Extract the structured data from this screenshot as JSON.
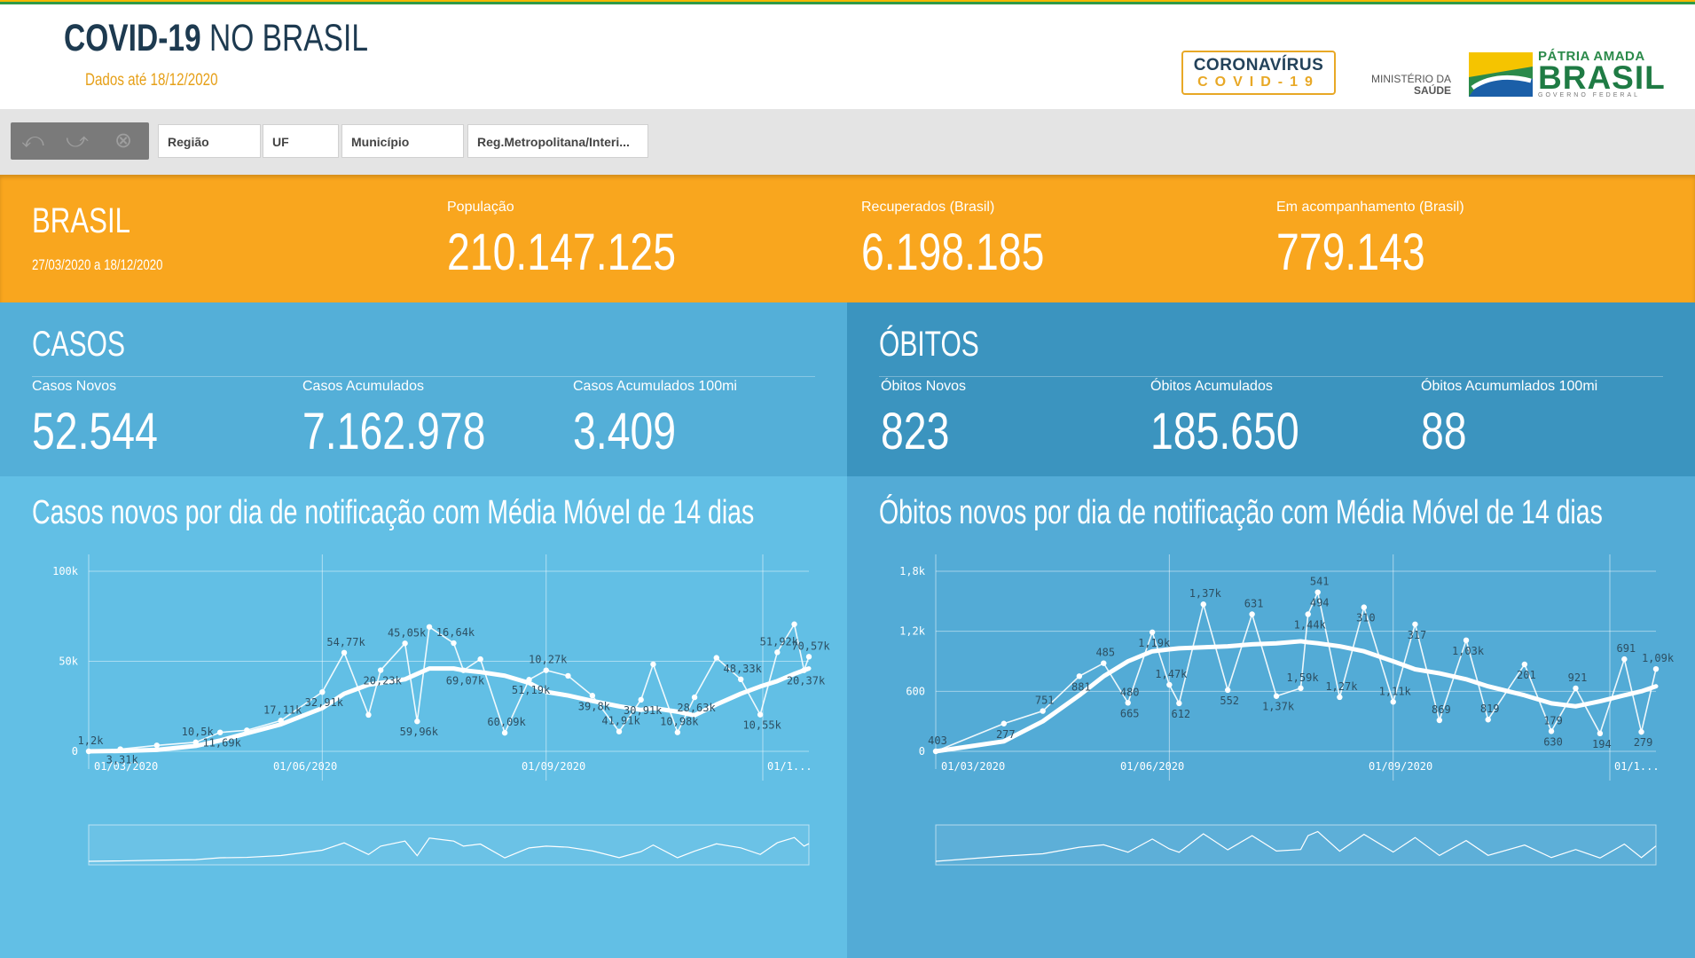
{
  "header": {
    "title_bold": "COVID-19",
    "title_light": "NO BRASIL",
    "data_date": "Dados até 18/12/2020",
    "logo_covid_line1": "CORONAVÍRUS",
    "logo_covid_line2": "COVID-19",
    "logo_ministerio_line1": "MINISTÉRIO DA",
    "logo_ministerio_line2": "SAÚDE",
    "logo_brasil_top": "PÁTRIA AMADA",
    "logo_brasil_main": "BRASIL",
    "logo_brasil_sub": "GOVERNO FEDERAL"
  },
  "filters": {
    "tool_icons": [
      "step-back-icon",
      "step-forward-icon",
      "clear-selections-icon"
    ],
    "items": [
      "Região",
      "UF",
      "Município",
      "Reg.Metropolitana/Interi..."
    ]
  },
  "summary": {
    "title": "BRASIL",
    "range": "27/03/2020 a 18/12/2020",
    "stats": [
      {
        "label": "População",
        "value": "210.147.125"
      },
      {
        "label": "Recuperados (Brasil)",
        "value": "6.198.185"
      },
      {
        "label": "Em acompanhamento (Brasil)",
        "value": "779.143"
      }
    ]
  },
  "casos": {
    "title": "CASOS",
    "kpis": [
      {
        "label": "Casos Novos",
        "value": "52.544"
      },
      {
        "label": "Casos Acumulados",
        "value": "7.162.978"
      },
      {
        "label": "Casos Acumulados 100mi",
        "value": "3.409"
      }
    ],
    "chart_title": "Casos novos por dia de notificação com Média Móvel de 14 dias"
  },
  "obitos": {
    "title": "ÓBITOS",
    "kpis": [
      {
        "label": "Óbitos Novos",
        "value": "823"
      },
      {
        "label": "Óbitos Acumulados",
        "value": "185.650"
      },
      {
        "label": "Óbitos Acumumlados 100mi",
        "value": "88"
      }
    ],
    "chart_title": "Óbitos novos por dia de notificação com Média Móvel de 14 dias"
  },
  "colors": {
    "orange": "#f9a61e",
    "blue_kpi_left": "#54afd8",
    "blue_kpi_right": "#3b94bf",
    "blue_chart_left": "#62bfe5",
    "blue_chart_right": "#53abd6",
    "title_dark": "#1d3a50",
    "date_orange": "#e6a019"
  },
  "chart_data": [
    {
      "type": "line",
      "ylim": [
        0,
        100000
      ],
      "yticks": [
        "0",
        "50k",
        "100k"
      ],
      "xticks": [
        "01/03/2020",
        "01/06/2020",
        "01/09/2020",
        "01/1..."
      ],
      "x": [
        "2020-02-26",
        "2020-03-10",
        "2020-03-25",
        "2020-04-10",
        "2020-04-20",
        "2020-05-01",
        "2020-05-15",
        "2020-06-01",
        "2020-06-10",
        "2020-06-20",
        "2020-06-25",
        "2020-07-05",
        "2020-07-10",
        "2020-07-15",
        "2020-07-25",
        "2020-07-29",
        "2020-08-05",
        "2020-08-15",
        "2020-08-25",
        "2020-09-01",
        "2020-09-10",
        "2020-09-20",
        "2020-10-01",
        "2020-10-10",
        "2020-10-15",
        "2020-10-25",
        "2020-11-01",
        "2020-11-10",
        "2020-11-20",
        "2020-11-28",
        "2020-12-05",
        "2020-12-12",
        "2020-12-16",
        "2020-12-18"
      ],
      "series": [
        {
          "name": "Casos novos",
          "values": [
            0,
            1200,
            3310,
            5000,
            10500,
            11690,
            17110,
            32910,
            54770,
            20230,
            45050,
            59960,
            16640,
            69070,
            60090,
            45000,
            51190,
            10270,
            39800,
            45000,
            41910,
            30910,
            10980,
            28630,
            48330,
            10550,
            30000,
            51920,
            40000,
            20370,
            55000,
            70570,
            45000,
            52544
          ]
        },
        {
          "name": "Média Móvel de 14 dias",
          "values": [
            0,
            200,
            800,
            3000,
            6000,
            10000,
            15000,
            24000,
            32000,
            37000,
            38000,
            40000,
            43000,
            46000,
            46000,
            45000,
            44000,
            42000,
            38000,
            33000,
            31000,
            28000,
            25000,
            23000,
            24000,
            22000,
            20000,
            26000,
            32000,
            36000,
            39000,
            43000,
            45000,
            46000
          ]
        }
      ],
      "data_labels": [
        "1,2k",
        "3,31k",
        "10,5k",
        "11,69k",
        "17,11k",
        "32,91k",
        "54,77k",
        "20,23k",
        "45,05k",
        "59,96k",
        "16,64k",
        "69,07k",
        "60,09k",
        "51,19k",
        "10,27k",
        "39,8k",
        "41,91k",
        "30,91k",
        "10,98k",
        "28,63k",
        "48,33k",
        "10,55k",
        "51,92k",
        "20,37k",
        "70,57k"
      ]
    },
    {
      "type": "line",
      "ylim": [
        0,
        1800
      ],
      "yticks": [
        "0",
        "600",
        "1,2k",
        "1,8k"
      ],
      "xticks": [
        "01/03/2020",
        "01/06/2020",
        "01/09/2020",
        "01/1..."
      ],
      "x": [
        "2020-02-26",
        "2020-03-25",
        "2020-04-10",
        "2020-04-25",
        "2020-05-05",
        "2020-05-15",
        "2020-05-25",
        "2020-06-01",
        "2020-06-05",
        "2020-06-15",
        "2020-06-25",
        "2020-07-05",
        "2020-07-15",
        "2020-07-25",
        "2020-07-28",
        "2020-08-01",
        "2020-08-10",
        "2020-08-20",
        "2020-09-01",
        "2020-09-10",
        "2020-09-20",
        "2020-10-01",
        "2020-10-10",
        "2020-10-25",
        "2020-11-05",
        "2020-11-15",
        "2020-11-25",
        "2020-12-05",
        "2020-12-12",
        "2020-12-18"
      ],
      "series": [
        {
          "name": "Óbitos novos",
          "values": [
            0,
            277,
            403,
            751,
            881,
            485,
            1190,
            665,
            480,
            1470,
            612,
            1370,
            552,
            631,
            1370,
            1590,
            541,
            1440,
            494,
            1270,
            310,
            1110,
            317,
            869,
            201,
            630,
            179,
            921,
            194,
            823
          ]
        },
        {
          "name": "Média Móvel de 14 dias",
          "values": [
            0,
            100,
            300,
            560,
            750,
            900,
            1000,
            1020,
            1030,
            1040,
            1050,
            1070,
            1080,
            1100,
            1090,
            1080,
            1050,
            1000,
            900,
            820,
            780,
            720,
            650,
            560,
            480,
            450,
            500,
            560,
            600,
            650
          ]
        }
      ],
      "data_labels": [
        "403",
        "277",
        "751",
        "881",
        "485",
        "665",
        "480",
        "1,19k",
        "1,47k",
        "612",
        "1,37k",
        "552",
        "631",
        "1,37k",
        "1,59k",
        "1,44k",
        "541",
        "494",
        "1,27k",
        "310",
        "1,11k",
        "317",
        "869",
        "1,03k",
        "819",
        "201",
        "179",
        "630",
        "921",
        "194",
        "691",
        "279",
        "1,09k"
      ]
    }
  ]
}
